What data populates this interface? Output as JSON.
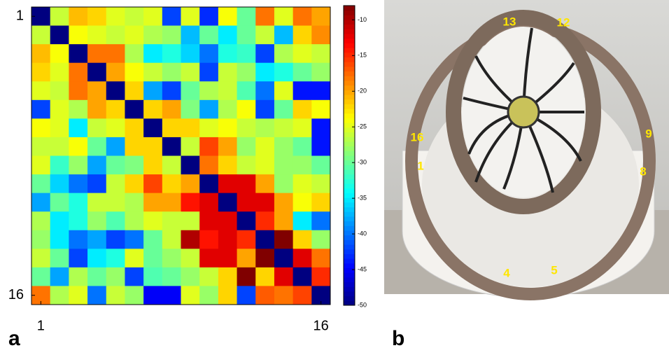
{
  "chart_data": {
    "type": "heatmap",
    "values": [
      [
        -50,
        -26,
        -21,
        -22,
        -25,
        -26,
        -25,
        -42,
        -25,
        -43,
        -24,
        -30,
        -18,
        -25,
        -18,
        -20
      ],
      [
        -26,
        -50,
        -24,
        -25,
        -26,
        -25,
        -27,
        -28,
        -37,
        -30,
        -35,
        -30,
        -26,
        -37,
        -22,
        -19
      ],
      [
        -21,
        -24,
        -50,
        -18,
        -18,
        -27,
        -35,
        -33,
        -36,
        -40,
        -33,
        -32,
        -42,
        -27,
        -25,
        -26
      ],
      [
        -22,
        -25,
        -18,
        -50,
        -20,
        -24,
        -26,
        -28,
        -26,
        -42,
        -26,
        -28,
        -35,
        -33,
        -30,
        -28
      ],
      [
        -25,
        -26,
        -18,
        -20,
        -50,
        -22,
        -38,
        -42,
        -30,
        -27,
        -26,
        -31,
        -40,
        -25,
        -44,
        -44
      ],
      [
        -42,
        -25,
        -27,
        -20,
        -22,
        -50,
        -22,
        -20,
        -29,
        -38,
        -27,
        -24,
        -42,
        -30,
        -22,
        -24
      ],
      [
        -24,
        -25,
        -35,
        -26,
        -25,
        -22,
        -50,
        -22,
        -22,
        -25,
        -24,
        -26,
        -27,
        -26,
        -25,
        -44
      ],
      [
        -26,
        -26,
        -24,
        -30,
        -38,
        -22,
        -22,
        -50,
        -26,
        -16,
        -20,
        -28,
        -25,
        -28,
        -30,
        -44
      ],
      [
        -25,
        -32,
        -28,
        -38,
        -30,
        -29,
        -22,
        -26,
        -50,
        -18,
        -22,
        -26,
        -25,
        -28,
        -28,
        -30
      ],
      [
        -30,
        -36,
        -40,
        -42,
        -26,
        -22,
        -16,
        -22,
        -20,
        -50,
        -12,
        -12,
        -20,
        -28,
        -25,
        -26
      ],
      [
        -38,
        -30,
        -33,
        -26,
        -26,
        -27,
        -20,
        -20,
        -14,
        -12,
        -50,
        -12,
        -12,
        -20,
        -24,
        -22
      ],
      [
        -27,
        -35,
        -33,
        -28,
        -31,
        -27,
        -25,
        -26,
        -26,
        -12,
        -12,
        -50,
        -15,
        -20,
        -35,
        -40
      ],
      [
        -28,
        -35,
        -40,
        -38,
        -42,
        -40,
        -30,
        -26,
        -10,
        -14,
        -12,
        -15,
        -50,
        -8,
        -22,
        -28
      ],
      [
        -26,
        -30,
        -42,
        -35,
        -33,
        -25,
        -30,
        -28,
        -26,
        -12,
        -12,
        -20,
        -8,
        -50,
        -12,
        -18
      ],
      [
        -30,
        -38,
        -27,
        -30,
        -28,
        -42,
        -31,
        -30,
        -28,
        -26,
        -22,
        -8,
        -22,
        -12,
        -50,
        -15
      ],
      [
        -18,
        -27,
        -25,
        -40,
        -26,
        -28,
        -45,
        -45,
        -25,
        -28,
        -22,
        -42,
        -17,
        -18,
        -16,
        -50
      ]
    ],
    "xlim": [
      0.5,
      16.5
    ],
    "ylim": [
      0.5,
      16.5
    ],
    "xticks": [
      1,
      16
    ],
    "yticks": [
      1,
      16
    ],
    "colormap": "jet",
    "clim": [
      -50,
      -8
    ],
    "cticks": [
      -50,
      -45,
      -40,
      -35,
      -30,
      -25,
      -20,
      -15,
      -10
    ],
    "panel_label": "a"
  },
  "photo": {
    "panel_label": "b",
    "labels": [
      "13",
      "12",
      "16",
      "9",
      "1",
      "8",
      "4",
      "5"
    ]
  }
}
